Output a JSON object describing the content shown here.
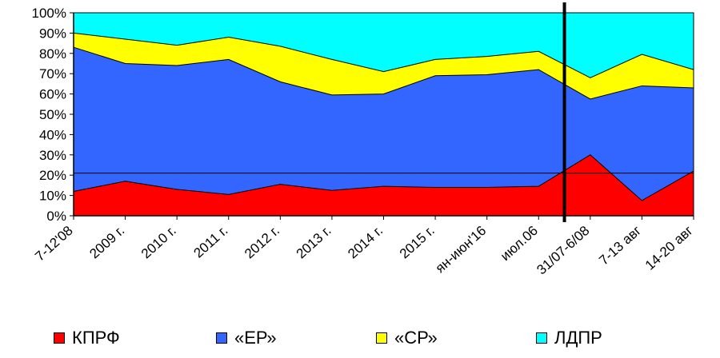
{
  "chart_data": {
    "type": "area",
    "stacked": true,
    "percent": true,
    "categories": [
      "7-12'08",
      "2009 г.",
      "2010 г.",
      "2011 г.",
      "2012 г.",
      "2013 г.",
      "2014 г.",
      "2015 г.",
      "ян-июн'16",
      "июл.06",
      "31/07-6/08",
      "7-13 авг",
      "14-20 авг"
    ],
    "series": [
      {
        "name": "КПРФ",
        "color": "#ff0000",
        "values": [
          12,
          17,
          13,
          10.5,
          15.5,
          12.5,
          14.5,
          14,
          14,
          14.5,
          30,
          7.5,
          22
        ]
      },
      {
        "name": "«ЕР»",
        "color": "#3366ff",
        "values": [
          71,
          58,
          61,
          66.5,
          50.5,
          47,
          45.5,
          55,
          55.5,
          57.5,
          27.5,
          56.5,
          41
        ]
      },
      {
        "name": "«СР»",
        "color": "#ffff00",
        "values": [
          7,
          12,
          10,
          11,
          17.5,
          17.5,
          11,
          8,
          9,
          9,
          10.5,
          15.5,
          9
        ]
      },
      {
        "name": "ЛДПР",
        "color": "#00ffff",
        "values": [
          10,
          13,
          16,
          12,
          16.5,
          23,
          29,
          23,
          21.5,
          19,
          32,
          20.5,
          28
        ]
      }
    ],
    "y_ticks": [
      "0%",
      "10%",
      "20%",
      "30%",
      "40%",
      "50%",
      "60%",
      "70%",
      "80%",
      "90%",
      "100%"
    ],
    "ylim": [
      0,
      100
    ],
    "reference_line": {
      "value": 21
    },
    "vertical_marker": {
      "between": [
        "июл.06",
        "31/07-6/08"
      ],
      "fraction": 0.5
    },
    "legend_position": "bottom"
  }
}
